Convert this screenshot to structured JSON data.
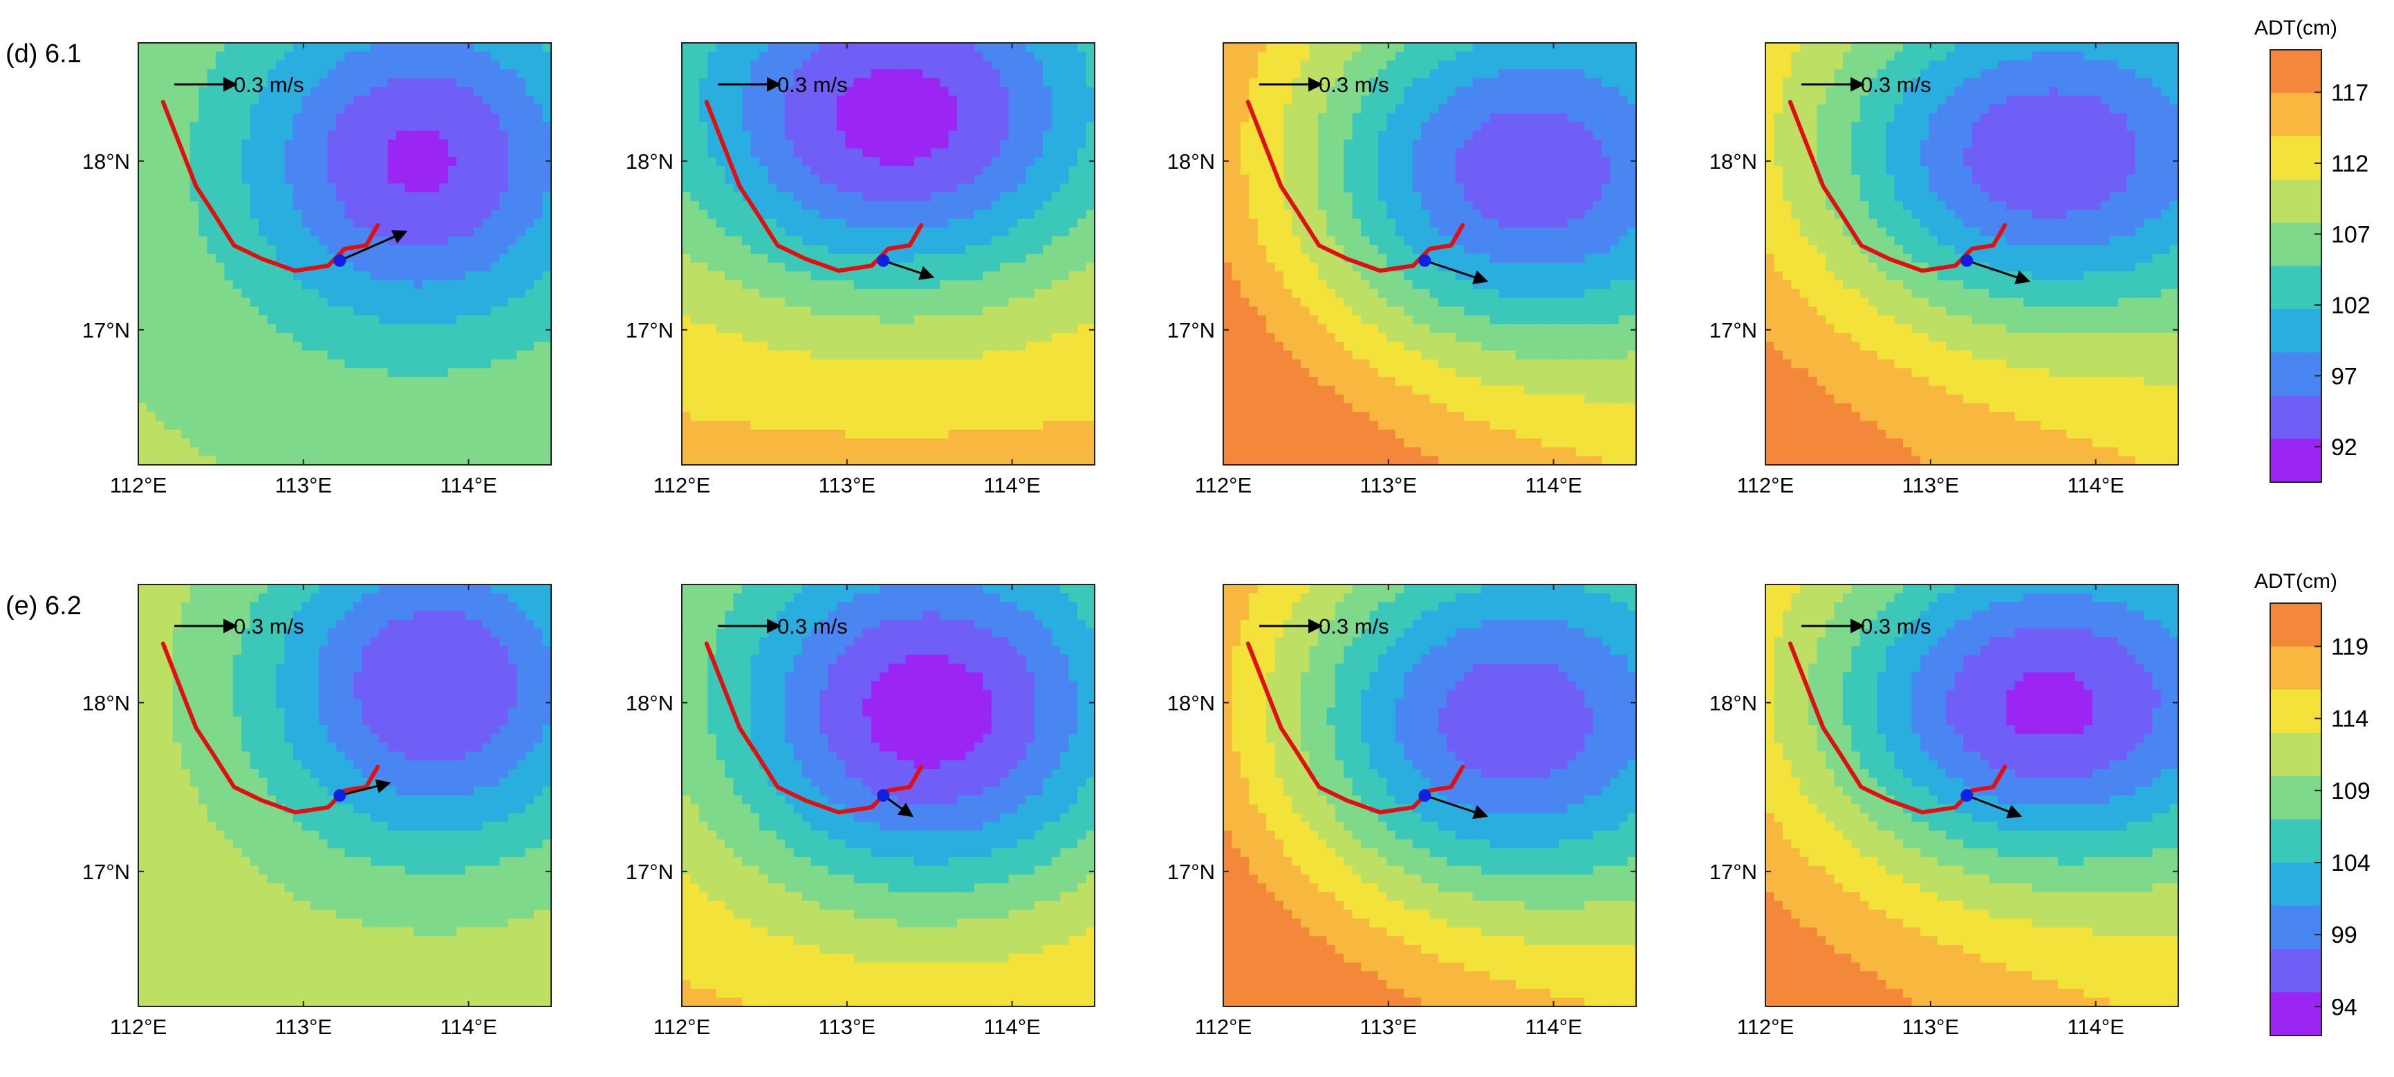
{
  "chart_data": {
    "type": "contour-map",
    "variable": "ADT(cm)",
    "scale_arrow_label": "0.3 m/s",
    "x_tick_labels": [
      "112°E",
      "113°E",
      "114°E"
    ],
    "y_tick_labels": [
      "18°N",
      "17°N"
    ],
    "x_ticks": [
      112,
      113,
      114
    ],
    "y_ticks": [
      18,
      17
    ],
    "xlim": [
      112,
      114.5
    ],
    "ylim": [
      16.2,
      18.7
    ],
    "palette": [
      "#9b26f3",
      "#6f5ff6",
      "#4a86f2",
      "#2aaee0",
      "#3cc8b8",
      "#7fd98a",
      "#bde064",
      "#f2e23a",
      "#f8b840",
      "#f4883a"
    ],
    "track": [
      [
        112.15,
        18.35
      ],
      [
        112.25,
        18.1
      ],
      [
        112.35,
        17.85
      ],
      [
        112.45,
        17.7
      ],
      [
        112.58,
        17.5
      ],
      [
        112.75,
        17.42
      ],
      [
        112.95,
        17.35
      ],
      [
        113.15,
        17.38
      ],
      [
        113.25,
        17.48
      ],
      [
        113.38,
        17.5
      ],
      [
        113.45,
        17.62
      ]
    ],
    "rows": [
      {
        "label": "(d) 6.1",
        "colorbar": {
          "title": "ADT(cm)",
          "ticks": [
            117,
            112,
            107,
            102,
            97,
            92
          ],
          "vmin": 89.5,
          "vmax": 120
        },
        "panels": [
          {
            "base": 108,
            "eddy": {
              "x": 113.7,
              "y": 18.0,
              "depth": 16,
              "rx": 1.1,
              "ry": 1.0
            },
            "trend": {
              "x": 0,
              "y": 0
            },
            "velocity": {
              "x": 113.22,
              "y": 17.41,
              "u": 0.32,
              "v": 0.14
            }
          },
          {
            "base": 112,
            "eddy": {
              "x": 113.3,
              "y": 18.2,
              "depth": 19,
              "rx": 1.3,
              "ry": 1.0
            },
            "trend": {
              "x": 0,
              "y": 3
            },
            "velocity": {
              "x": 113.22,
              "y": 17.41,
              "u": 0.24,
              "v": -0.08
            }
          },
          {
            "base": 117,
            "eddy": {
              "x": 113.7,
              "y": 17.9,
              "depth": 21,
              "rx": 1.4,
              "ry": 1.1
            },
            "trend": {
              "x": -4,
              "y": 2
            },
            "velocity": {
              "x": 113.22,
              "y": 17.41,
              "u": 0.3,
              "v": -0.1
            }
          },
          {
            "base": 115,
            "eddy": {
              "x": 113.6,
              "y": 18.0,
              "depth": 20,
              "rx": 1.4,
              "ry": 1.0
            },
            "trend": {
              "x": -3,
              "y": 2
            },
            "velocity": {
              "x": 113.22,
              "y": 17.41,
              "u": 0.3,
              "v": -0.1
            }
          }
        ]
      },
      {
        "label": "(e) 6.2",
        "colorbar": {
          "title": "ADT(cm)",
          "ticks": [
            119,
            114,
            109,
            104,
            99,
            94
          ],
          "vmin": 92,
          "vmax": 122
        },
        "panels": [
          {
            "base": 112,
            "eddy": {
              "x": 113.8,
              "y": 18.1,
              "depth": 17,
              "rx": 1.1,
              "ry": 1.0
            },
            "trend": {
              "x": 0,
              "y": 0
            },
            "velocity": {
              "x": 113.22,
              "y": 17.45,
              "u": 0.24,
              "v": 0.06
            }
          },
          {
            "base": 115,
            "eddy": {
              "x": 113.5,
              "y": 17.9,
              "depth": 21,
              "rx": 1.3,
              "ry": 1.1
            },
            "trend": {
              "x": 0,
              "y": 2
            },
            "velocity": {
              "x": 113.22,
              "y": 17.45,
              "u": 0.14,
              "v": -0.1
            }
          },
          {
            "base": 119,
            "eddy": {
              "x": 113.6,
              "y": 17.85,
              "depth": 21,
              "rx": 1.4,
              "ry": 1.1
            },
            "trend": {
              "x": -4,
              "y": 2
            },
            "velocity": {
              "x": 113.22,
              "y": 17.45,
              "u": 0.3,
              "v": -0.1
            }
          },
          {
            "base": 117,
            "eddy": {
              "x": 113.6,
              "y": 17.95,
              "depth": 21,
              "rx": 1.4,
              "ry": 1.0
            },
            "trend": {
              "x": -3,
              "y": 2
            },
            "velocity": {
              "x": 113.22,
              "y": 17.45,
              "u": 0.26,
              "v": -0.1
            }
          }
        ]
      }
    ]
  }
}
